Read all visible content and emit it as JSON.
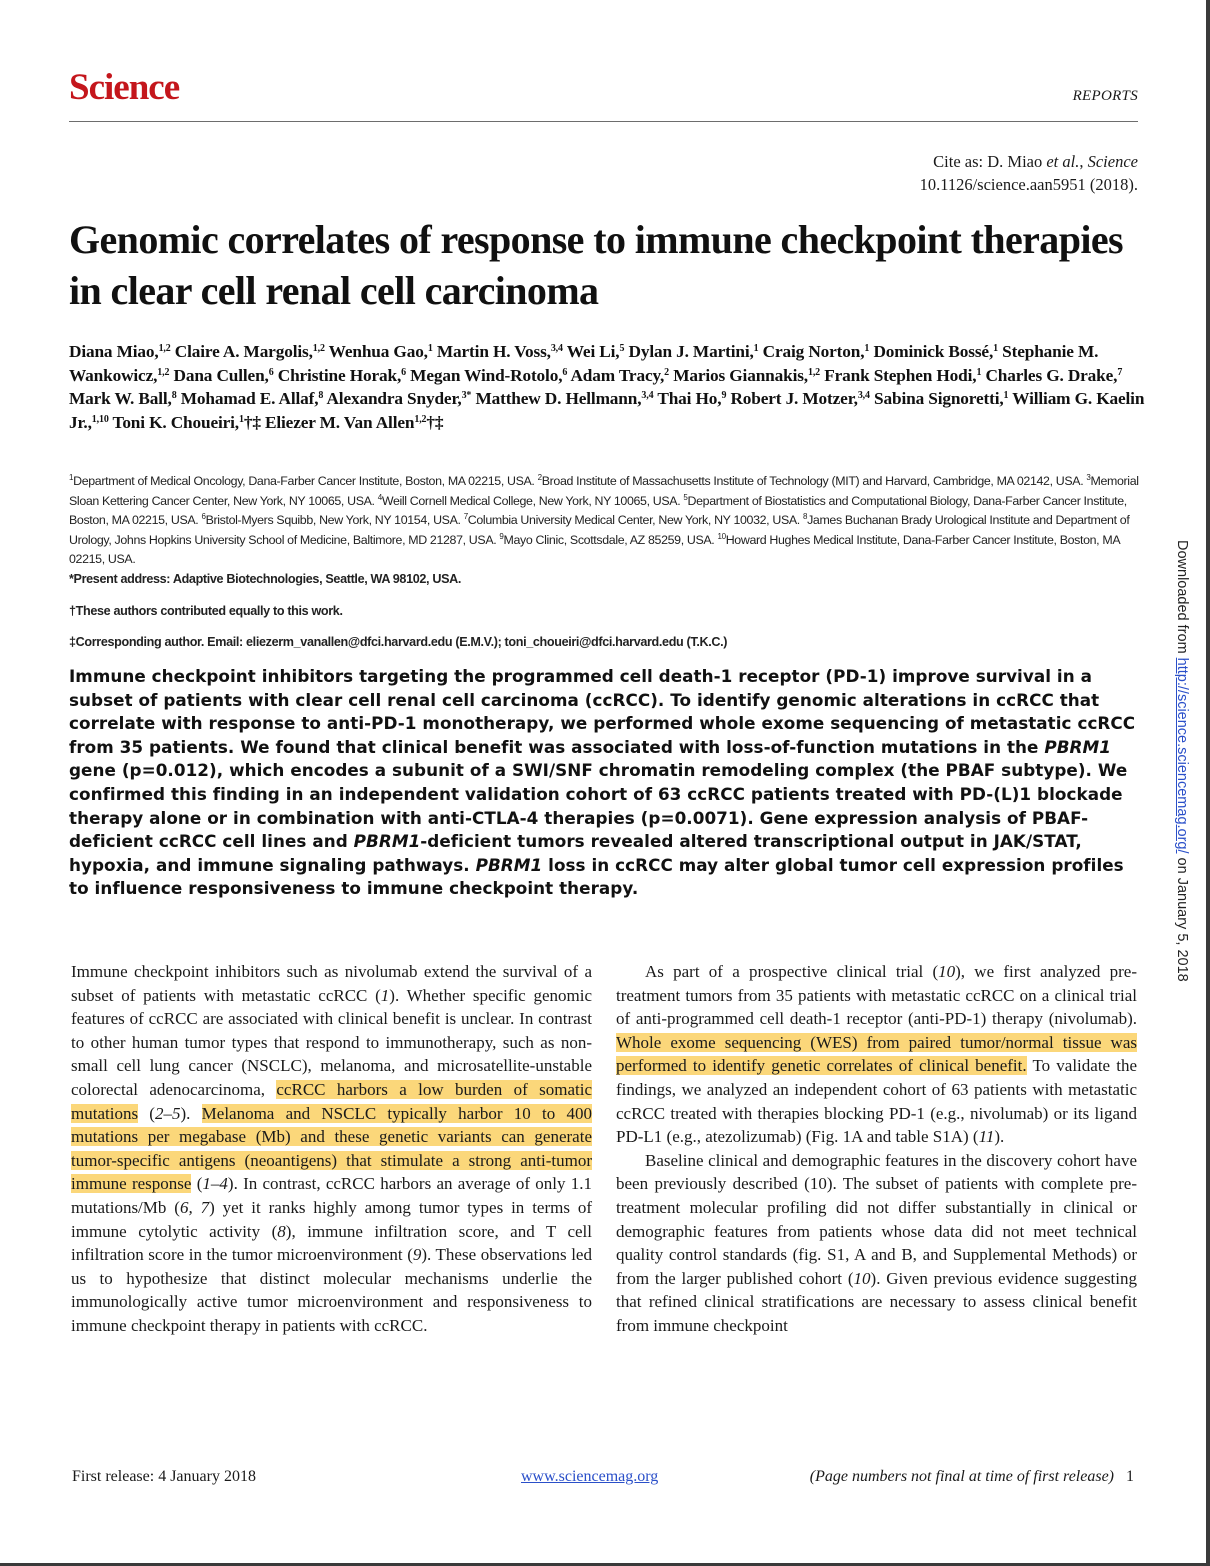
{
  "header": {
    "journal": "Science",
    "section": "REPORTS",
    "cite_line1_prefix": "Cite as: D. Miao ",
    "cite_line1_etal": "et al.",
    "cite_line1_sep": ", ",
    "cite_line1_journal": "Science",
    "cite_line2": "10.1126/science.aan5951 (2018)."
  },
  "title": "Genomic correlates of response to immune checkpoint therapies in clear cell renal cell carcinoma",
  "authors": [
    {
      "name": "Diana Miao,",
      "aff": "1,2"
    },
    {
      "name": "Claire A. Margolis,",
      "aff": "1,2"
    },
    {
      "name": "Wenhua Gao,",
      "aff": "1"
    },
    {
      "name": "Martin H. Voss,",
      "aff": "3,4"
    },
    {
      "name": "Wei Li,",
      "aff": "5"
    },
    {
      "name": "Dylan J. Martini,",
      "aff": "1"
    },
    {
      "name": "Craig Norton,",
      "aff": "1"
    },
    {
      "name": "Dominick Bossé,",
      "aff": "1"
    },
    {
      "name": "Stephanie M. Wankowicz,",
      "aff": "1,2"
    },
    {
      "name": "Dana Cullen,",
      "aff": "6"
    },
    {
      "name": "Christine Horak,",
      "aff": "6"
    },
    {
      "name": "Megan Wind-Rotolo,",
      "aff": "6"
    },
    {
      "name": "Adam Tracy,",
      "aff": "2"
    },
    {
      "name": "Marios Giannakis,",
      "aff": "1,2"
    },
    {
      "name": "Frank Stephen Hodi,",
      "aff": "1"
    },
    {
      "name": "Charles G. Drake,",
      "aff": "7"
    },
    {
      "name": "Mark W. Ball,",
      "aff": "8"
    },
    {
      "name": "Mohamad E. Allaf,",
      "aff": "8"
    },
    {
      "name": "Alexandra Snyder,",
      "aff": "3*"
    },
    {
      "name": "Matthew D. Hellmann,",
      "aff": "3,4"
    },
    {
      "name": "Thai Ho,",
      "aff": "9"
    },
    {
      "name": "Robert J. Motzer,",
      "aff": "3,4"
    },
    {
      "name": "Sabina Signoretti,",
      "aff": "1"
    },
    {
      "name": "William G. Kaelin Jr.,",
      "aff": "1,10"
    },
    {
      "name": "Toni K. Choueiri,",
      "aff": "1"
    },
    {
      "name": "†‡",
      "aff": ""
    },
    {
      "name": "Eliezer M. Van Allen",
      "aff": "1,2"
    },
    {
      "name": "†‡",
      "aff": ""
    }
  ],
  "affiliations": [
    {
      "n": "1",
      "t": "Department of Medical Oncology, Dana-Farber Cancer Institute, Boston, MA 02215, USA. "
    },
    {
      "n": "2",
      "t": "Broad Institute of Massachusetts Institute of Technology (MIT) and Harvard, Cambridge, MA 02142, USA. "
    },
    {
      "n": "3",
      "t": "Memorial Sloan Kettering Cancer Center, New York, NY 10065, USA. "
    },
    {
      "n": "4",
      "t": "Weill Cornell Medical College, New York, NY 10065, USA. "
    },
    {
      "n": "5",
      "t": "Department of Biostatistics and Computational Biology, Dana-Farber Cancer Institute, Boston, MA 02215, USA. "
    },
    {
      "n": "6",
      "t": "Bristol-Myers Squibb, New York, NY 10154, USA. "
    },
    {
      "n": "7",
      "t": "Columbia University Medical Center, New York, NY 10032, USA. "
    },
    {
      "n": "8",
      "t": "James Buchanan Brady Urological Institute and Department of Urology, Johns Hopkins University School of Medicine, Baltimore, MD 21287, USA. "
    },
    {
      "n": "9",
      "t": "Mayo Clinic, Scottsdale, AZ 85259, USA. "
    },
    {
      "n": "10",
      "t": "Howard Hughes Medical Institute, Dana-Farber Cancer Institute, Boston, MA 02215, USA."
    }
  ],
  "notes": {
    "present": "*Present address: Adaptive Biotechnologies, Seattle, WA 98102, USA.",
    "equal": "†These authors contributed equally to this work.",
    "corresponding": "‡Corresponding author. Email: eliezerm_vanallen@dfci.harvard.edu (E.M.V.); toni_choueiri@dfci.harvard.edu (T.K.C.)"
  },
  "abstract": [
    {
      "t": "Immune checkpoint inhibitors targeting the programmed cell death-1 receptor (PD-1) improve survival in a subset of patients with clear cell renal cell carcinoma (ccRCC). To identify genomic alterations in ccRCC that correlate with response to anti-PD-1 monotherapy, we performed whole exome sequencing of metastatic ccRCC from 35 patients. We found that clinical benefit was associated with loss-of-function mutations in the "
    },
    {
      "t": "PBRM1",
      "i": true
    },
    {
      "t": " gene (p=0.012), which encodes a subunit of a SWI/SNF chromatin remodeling complex (the PBAF subtype). We confirmed this finding in an independent validation cohort of 63 ccRCC patients treated with PD-(L)1 blockade therapy alone or in combination with anti-CTLA-4 therapies (p=0.0071). Gene expression analysis of PBAF-deficient ccRCC cell lines and "
    },
    {
      "t": "PBRM1",
      "i": true
    },
    {
      "t": "-deficient tumors revealed altered transcriptional output in JAK/STAT, hypoxia, and immune signaling pathways. "
    },
    {
      "t": "PBRM1",
      "i": true
    },
    {
      "t": " loss in ccRCC may alter global tumor cell expression profiles to influence responsiveness to immune checkpoint therapy."
    }
  ],
  "body_left": [
    {
      "t": "Immune checkpoint inhibitors such as nivolumab extend the survival of a subset of patients with metastatic ccRCC ("
    },
    {
      "t": "1",
      "i": true
    },
    {
      "t": "). Whether specific genomic features of ccRCC are associated with clinical benefit is unclear. In contrast to other human tumor types that respond to immunotherapy, such as non-small cell lung cancer (NSCLC), melanoma, and microsatellite-unstable colorectal adenocarcinoma, "
    },
    {
      "t": "ccRCC harbors a low burden of somatic mutations",
      "h": true
    },
    {
      "t": " ("
    },
    {
      "t": "2–5",
      "i": true
    },
    {
      "t": "). "
    },
    {
      "t": "Melanoma and NSCLC typically harbor 10 to 400 mutations per megabase (Mb) and these genetic variants can generate tumor-specific antigens (neoantigens) that stimulate a strong anti-tumor immune response",
      "h": true
    },
    {
      "t": " ("
    },
    {
      "t": "1–4",
      "i": true
    },
    {
      "t": "). In contrast, ccRCC harbors an average of only 1.1 mutations/Mb ("
    },
    {
      "t": "6, 7",
      "i": true
    },
    {
      "t": ") yet it ranks highly among tumor types in terms of immune cytolytic activity ("
    },
    {
      "t": "8",
      "i": true
    },
    {
      "t": "), immune infiltration score, and T cell infiltration score in the tumor microenvironment ("
    },
    {
      "t": "9",
      "i": true
    },
    {
      "t": "). These observations led us to hypothesize that distinct molecular mechanisms underlie the immunologically active tumor microenvironment and responsiveness to immune checkpoint therapy in patients with ccRCC."
    }
  ],
  "body_right_p1": [
    {
      "t": "As part of a prospective clinical trial ("
    },
    {
      "t": "10",
      "i": true
    },
    {
      "t": "), we first analyzed pre-treatment tumors from 35 patients with metastatic ccRCC on a clinical trial of anti-programmed cell death-1 receptor (anti-PD-1) therapy (nivolumab). "
    },
    {
      "t": "Whole exome sequencing (WES) from paired tumor/normal tissue was performed to identify genetic correlates of clinical benefit.",
      "h": true
    },
    {
      "t": " To validate the findings, we analyzed an independent cohort of 63 patients with metastatic ccRCC treated with therapies blocking PD-1 (e.g., nivolumab) or its ligand PD-L1 (e.g., atezolizumab) (Fig. 1A and table S1A) ("
    },
    {
      "t": "11",
      "i": true
    },
    {
      "t": ")."
    }
  ],
  "body_right_p2": [
    {
      "t": "Baseline clinical and demographic features in the discovery cohort have been previously described (10). The subset of patients with complete pre-treatment molecular profiling did not differ substantially in clinical or demographic features from patients whose data did not meet technical quality control standards (fig. S1, A and B, and Supplemental Methods) or from the larger published cohort ("
    },
    {
      "t": "10",
      "i": true
    },
    {
      "t": "). Given previous evidence suggesting that refined clinical stratifications are necessary to assess clinical benefit from immune checkpoint"
    }
  ],
  "sidebar": {
    "prefix": "Downloaded from ",
    "link": "http://science.sciencemag.org/",
    "suffix": " on January 5, 2018"
  },
  "footer": {
    "release": "First release: 4 January 2018",
    "site": "www.sciencemag.org",
    "note": "(Page numbers not final at time of first release)",
    "page": "1"
  },
  "colors": {
    "logo": "#c4161c",
    "highlight": "#fbd77a",
    "link": "#2a4fc9"
  }
}
